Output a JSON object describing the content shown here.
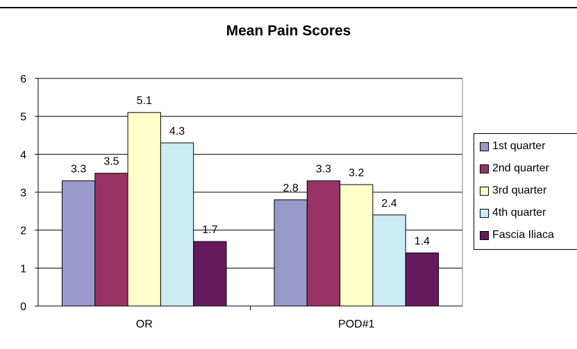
{
  "chart_data": {
    "type": "bar",
    "title": "Mean Pain Scores",
    "categories": [
      "OR",
      "POD#1"
    ],
    "ylim": [
      0,
      6
    ],
    "yticks": [
      "0",
      "1",
      "2",
      "3",
      "4",
      "5",
      "6"
    ],
    "grid": true,
    "legend_position": "right",
    "series": [
      {
        "name": "1st quarter",
        "color": "#9999cc",
        "values": [
          3.3,
          2.8
        ],
        "labels": [
          "3.3",
          "2.8"
        ]
      },
      {
        "name": "2nd quarter",
        "color": "#993366",
        "values": [
          3.5,
          3.3
        ],
        "labels": [
          "3.5",
          "3.3"
        ]
      },
      {
        "name": "3rd quarter",
        "color": "#ffffcc",
        "values": [
          5.1,
          3.2
        ],
        "labels": [
          "5.1",
          "3.2"
        ]
      },
      {
        "name": "4th quarter",
        "color": "#ccecf4",
        "values": [
          4.3,
          2.4
        ],
        "labels": [
          "4.3",
          "2.4"
        ]
      },
      {
        "name": "Fascia Iliaca",
        "color": "#661a5e",
        "values": [
          1.7,
          1.4
        ],
        "labels": [
          "1.7",
          "1.4"
        ]
      }
    ]
  }
}
